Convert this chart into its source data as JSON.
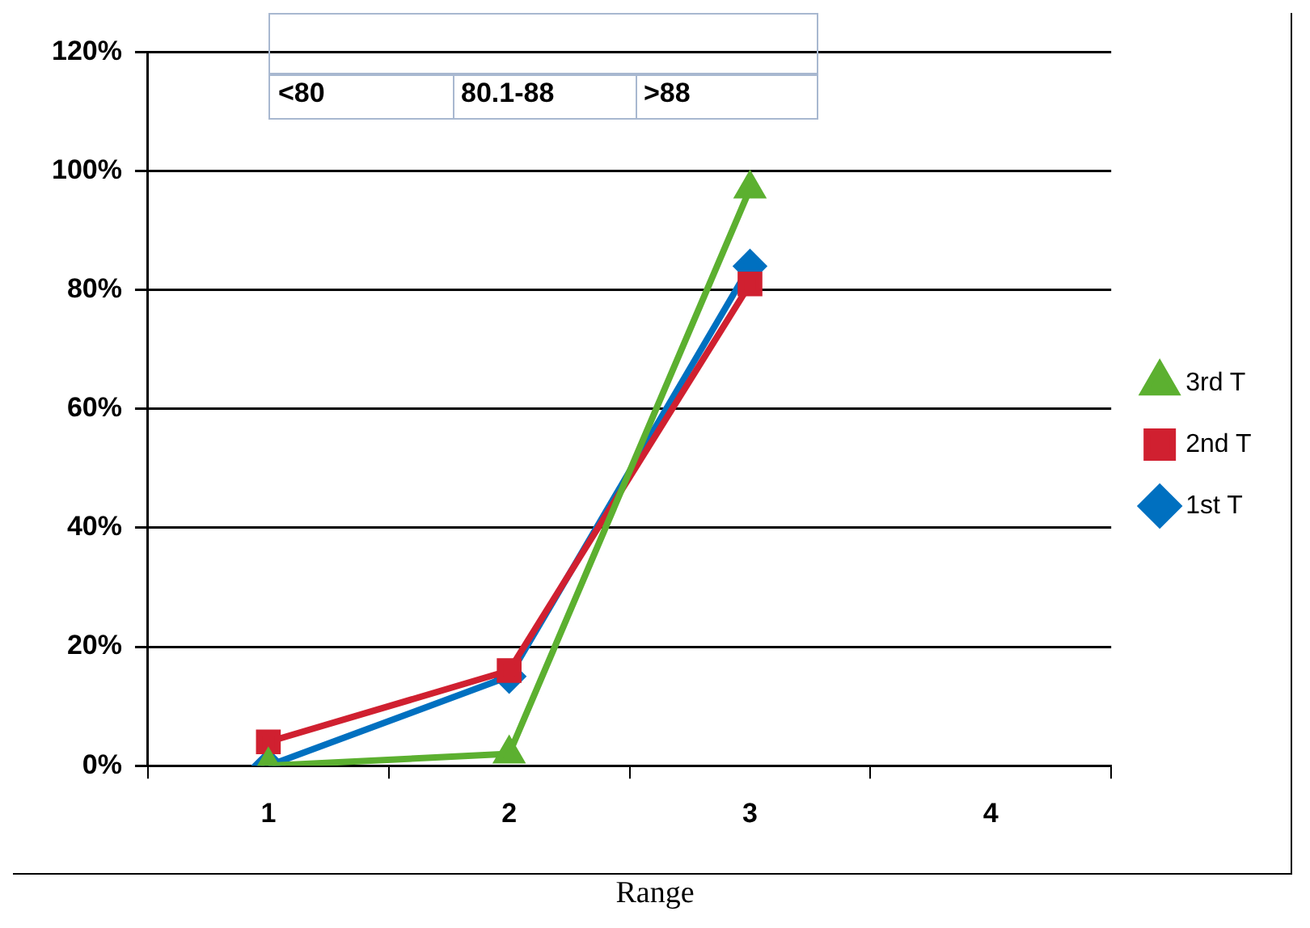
{
  "chart_data": {
    "type": "line",
    "xlabel": "Range",
    "categories": [
      "1",
      "2",
      "3",
      "4"
    ],
    "series": [
      {
        "name": "1st T",
        "color": "#0070c0",
        "marker": "diamond",
        "values": [
          0,
          15,
          84,
          null
        ]
      },
      {
        "name": "2nd T",
        "color": "#d02030",
        "marker": "square",
        "values": [
          4,
          16,
          81,
          null
        ]
      },
      {
        "name": "3rd T",
        "color": "#5cb030",
        "marker": "triangle",
        "values": [
          0,
          2,
          97,
          null
        ]
      }
    ],
    "ylim": [
      0,
      120
    ],
    "yticks": [
      {
        "value": 0,
        "label": "0%"
      },
      {
        "value": 20,
        "label": "20%"
      },
      {
        "value": 40,
        "label": "40%"
      },
      {
        "value": 60,
        "label": "60%"
      },
      {
        "value": 80,
        "label": "80%"
      },
      {
        "value": 100,
        "label": "100%"
      },
      {
        "value": 120,
        "label": "120%"
      }
    ],
    "grid": "y",
    "legend": "right",
    "annotations": [
      "<80",
      "80.1-88",
      ">88"
    ]
  }
}
